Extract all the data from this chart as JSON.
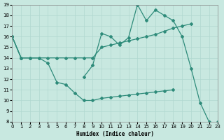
{
  "xlabel": "Humidex (Indice chaleur)",
  "x": [
    0,
    1,
    2,
    3,
    4,
    5,
    6,
    7,
    8,
    9,
    10,
    11,
    12,
    13,
    14,
    15,
    16,
    17,
    18,
    19,
    20,
    21,
    22,
    23
  ],
  "line1": [
    16,
    14,
    14,
    14,
    null,
    null,
    null,
    null,
    12.2,
    13.3,
    16.3,
    16.0,
    15.2,
    15.9,
    19.0,
    17.5,
    18.5,
    18.0,
    17.5,
    16.0,
    13.0,
    9.8,
    8.0,
    null
  ],
  "line2": [
    16,
    14,
    14,
    14,
    14,
    14,
    14,
    14,
    14,
    14,
    15,
    15.2,
    15.4,
    15.6,
    15.8,
    16.0,
    16.2,
    16.5,
    16.8,
    17.0,
    17.2,
    null,
    null,
    null
  ],
  "line3": [
    16,
    14,
    14,
    14,
    13.5,
    11.7,
    11.5,
    10.7,
    10.0,
    10.0,
    10.2,
    10.3,
    10.4,
    10.5,
    10.6,
    10.7,
    10.8,
    10.9,
    11.0,
    null,
    null,
    null,
    null,
    null
  ],
  "line4": [
    16,
    null,
    null,
    null,
    null,
    null,
    null,
    null,
    null,
    null,
    null,
    null,
    null,
    null,
    null,
    null,
    null,
    null,
    null,
    null,
    null,
    null,
    null,
    8.0
  ],
  "color": "#2e8b7a",
  "bg_color": "#c8e8e0",
  "grid_color": "#b0d8d0",
  "figsize": [
    3.2,
    2.0
  ],
  "dpi": 100,
  "ylim": [
    8,
    19
  ],
  "xlim": [
    0,
    23
  ],
  "yticks": [
    8,
    9,
    10,
    11,
    12,
    13,
    14,
    15,
    16,
    17,
    18,
    19
  ],
  "xticks": [
    0,
    1,
    2,
    3,
    4,
    5,
    6,
    7,
    8,
    9,
    10,
    11,
    12,
    13,
    14,
    15,
    16,
    17,
    18,
    19,
    20,
    21,
    22,
    23
  ]
}
